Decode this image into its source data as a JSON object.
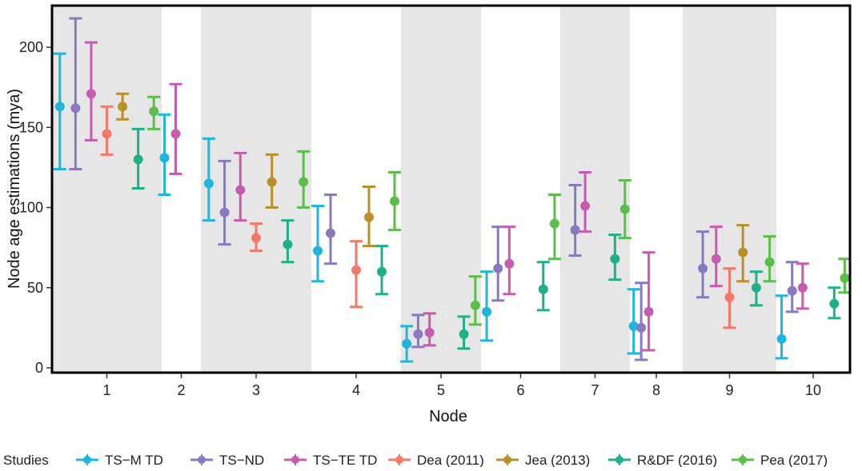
{
  "chart_data": {
    "type": "errorbar",
    "xlabel": "Node",
    "ylabel": "Node age estimations (mya)",
    "ylim": [
      -3,
      226
    ],
    "yticks": [
      0,
      50,
      100,
      150,
      200
    ],
    "grid": false,
    "legend": {
      "title": "Studies",
      "placement": "bottom"
    },
    "nodes": [
      {
        "label": "1",
        "shaded": true
      },
      {
        "label": "2",
        "shaded": false
      },
      {
        "label": "3",
        "shaded": true
      },
      {
        "label": "4",
        "shaded": false
      },
      {
        "label": "5",
        "shaded": true
      },
      {
        "label": "6",
        "shaded": false
      },
      {
        "label": "7",
        "shaded": true
      },
      {
        "label": "8",
        "shaded": false
      },
      {
        "label": "9",
        "shaded": true
      },
      {
        "label": "10",
        "shaded": false
      }
    ],
    "series": [
      {
        "name": "TS−M TD",
        "color": "#1fb5dc"
      },
      {
        "name": "TS−ND",
        "color": "#8a78c0"
      },
      {
        "name": "TS−TE TD",
        "color": "#c65cb0"
      },
      {
        "name": "Dea (2011)",
        "color": "#f07a6a"
      },
      {
        "name": "Jea (2013)",
        "color": "#b8902a"
      },
      {
        "name": "R&DF (2016)",
        "color": "#1fb08a"
      },
      {
        "name": "Pea (2017)",
        "color": "#5cbd4a"
      }
    ],
    "points": [
      {
        "node": 0,
        "series": 0,
        "est": 163,
        "low": 124,
        "high": 196
      },
      {
        "node": 0,
        "series": 1,
        "est": 162,
        "low": 124,
        "high": 218
      },
      {
        "node": 0,
        "series": 2,
        "est": 171,
        "low": 142,
        "high": 203
      },
      {
        "node": 0,
        "series": 3,
        "est": 146,
        "low": 133,
        "high": 163
      },
      {
        "node": 0,
        "series": 4,
        "est": 163,
        "low": 155,
        "high": 171
      },
      {
        "node": 0,
        "series": 5,
        "est": 130,
        "low": 112,
        "high": 149
      },
      {
        "node": 0,
        "series": 6,
        "est": 160,
        "low": 149,
        "high": 169
      },
      {
        "node": 1,
        "series": 0,
        "est": 131,
        "low": 108,
        "high": 158
      },
      {
        "node": 1,
        "series": 2,
        "est": 146,
        "low": 121,
        "high": 177
      },
      {
        "node": 2,
        "series": 0,
        "est": 115,
        "low": 92,
        "high": 143
      },
      {
        "node": 2,
        "series": 1,
        "est": 97,
        "low": 77,
        "high": 129
      },
      {
        "node": 2,
        "series": 2,
        "est": 111,
        "low": 92,
        "high": 134
      },
      {
        "node": 2,
        "series": 3,
        "est": 81,
        "low": 73,
        "high": 90
      },
      {
        "node": 2,
        "series": 4,
        "est": 116,
        "low": 100,
        "high": 133
      },
      {
        "node": 2,
        "series": 5,
        "est": 77,
        "low": 66,
        "high": 92
      },
      {
        "node": 2,
        "series": 6,
        "est": 116,
        "low": 100,
        "high": 135
      },
      {
        "node": 3,
        "series": 0,
        "est": 73,
        "low": 54,
        "high": 101
      },
      {
        "node": 3,
        "series": 1,
        "est": 84,
        "low": 65,
        "high": 108
      },
      {
        "node": 3,
        "series": 3,
        "est": 61,
        "low": 38,
        "high": 79
      },
      {
        "node": 3,
        "series": 4,
        "est": 94,
        "low": 76,
        "high": 113
      },
      {
        "node": 3,
        "series": 5,
        "est": 60,
        "low": 46,
        "high": 76
      },
      {
        "node": 3,
        "series": 6,
        "est": 104,
        "low": 86,
        "high": 122
      },
      {
        "node": 4,
        "series": 0,
        "est": 15,
        "low": 4,
        "high": 26
      },
      {
        "node": 4,
        "series": 1,
        "est": 21,
        "low": 13,
        "high": 33
      },
      {
        "node": 4,
        "series": 2,
        "est": 22,
        "low": 14,
        "high": 34
      },
      {
        "node": 4,
        "series": 5,
        "est": 21,
        "low": 12,
        "high": 32
      },
      {
        "node": 4,
        "series": 6,
        "est": 39,
        "low": 27,
        "high": 57
      },
      {
        "node": 5,
        "series": 0,
        "est": 35,
        "low": 17,
        "high": 60
      },
      {
        "node": 5,
        "series": 1,
        "est": 62,
        "low": 42,
        "high": 88
      },
      {
        "node": 5,
        "series": 2,
        "est": 65,
        "low": 46,
        "high": 88
      },
      {
        "node": 5,
        "series": 5,
        "est": 49,
        "low": 36,
        "high": 66
      },
      {
        "node": 5,
        "series": 6,
        "est": 90,
        "low": 68,
        "high": 108
      },
      {
        "node": 6,
        "series": 1,
        "est": 86,
        "low": 70,
        "high": 114
      },
      {
        "node": 6,
        "series": 2,
        "est": 101,
        "low": 85,
        "high": 122
      },
      {
        "node": 6,
        "series": 5,
        "est": 68,
        "low": 55,
        "high": 83
      },
      {
        "node": 6,
        "series": 6,
        "est": 99,
        "low": 81,
        "high": 117
      },
      {
        "node": 7,
        "series": 0,
        "est": 26,
        "low": 9,
        "high": 49
      },
      {
        "node": 7,
        "series": 1,
        "est": 25,
        "low": 5,
        "high": 53
      },
      {
        "node": 7,
        "series": 2,
        "est": 35,
        "low": 11,
        "high": 72
      },
      {
        "node": 8,
        "series": 1,
        "est": 62,
        "low": 44,
        "high": 85
      },
      {
        "node": 8,
        "series": 2,
        "est": 68,
        "low": 51,
        "high": 88
      },
      {
        "node": 8,
        "series": 3,
        "est": 44,
        "low": 25,
        "high": 62
      },
      {
        "node": 8,
        "series": 4,
        "est": 72,
        "low": 54,
        "high": 89
      },
      {
        "node": 8,
        "series": 5,
        "est": 50,
        "low": 39,
        "high": 60
      },
      {
        "node": 8,
        "series": 6,
        "est": 66,
        "low": 54,
        "high": 82
      },
      {
        "node": 9,
        "series": 0,
        "est": 18,
        "low": 6,
        "high": 45
      },
      {
        "node": 9,
        "series": 1,
        "est": 48,
        "low": 35,
        "high": 66
      },
      {
        "node": 9,
        "series": 2,
        "est": 50,
        "low": 37,
        "high": 65
      },
      {
        "node": 9,
        "series": 5,
        "est": 40,
        "low": 31,
        "high": 50
      },
      {
        "node": 9,
        "series": 6,
        "est": 56,
        "low": 47,
        "high": 68
      }
    ]
  }
}
